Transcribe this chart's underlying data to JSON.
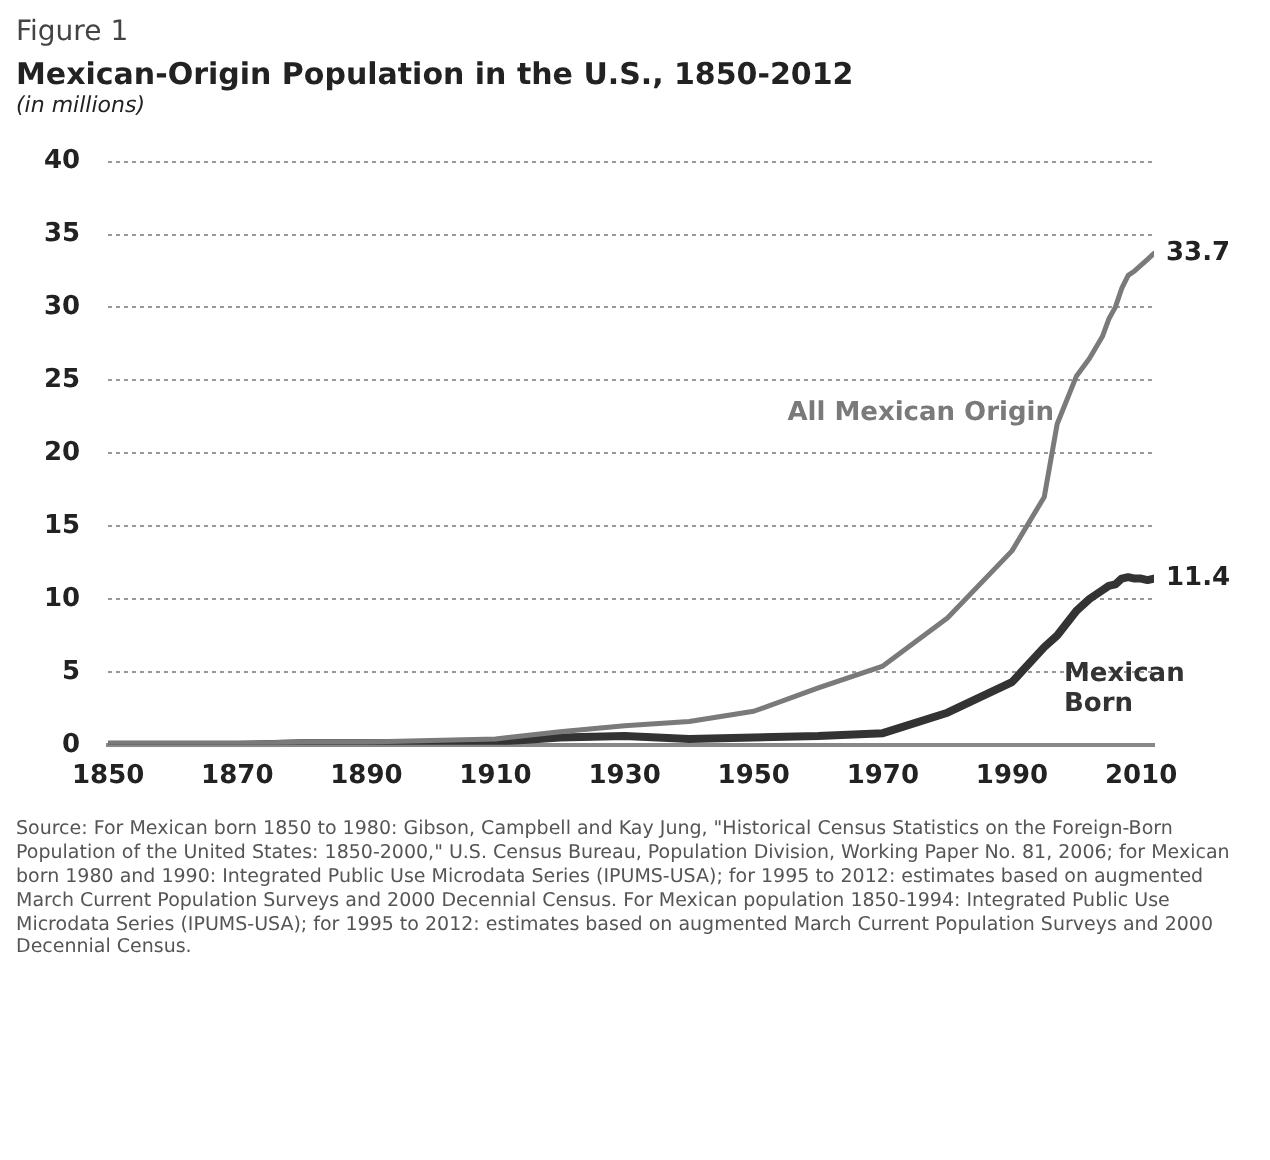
{
  "chart_data": {
    "type": "line",
    "title": "Mexican-Origin Population in the U.S., 1850-2012",
    "subtitle": "(in millions)",
    "annotations": [
      "Figure 1",
      "Source: For Mexican born 1850 to 1980: Gibson, Campbell and Kay Jung, \"Historical Census Statistics on the Foreign-Born Population of the United States: 1850-2000,\" U.S. Census Bureau, Population Division, Working Paper No. 81, 2006; for Mexican born 1980 and 1990: Integrated Public Use Microdata Series (IPUMS-USA); for 1995 to 2012: estimates based on augmented March Current Population Surveys and 2000 Decennial Census. For Mexican population 1850-1994: Integrated Public Use Microdata Series (IPUMS-USA); for 1995 to 2012: estimates based on augmented March Current Population Surveys and 2000 Decennial Census."
    ],
    "x": [
      1850,
      1860,
      1870,
      1880,
      1890,
      1900,
      1910,
      1920,
      1930,
      1940,
      1950,
      1960,
      1970,
      1980,
      1990,
      1995,
      1997,
      2000,
      2002,
      2004,
      2005,
      2006,
      2007,
      2008,
      2009,
      2010,
      2011,
      2012
    ],
    "series": [
      {
        "name": "All Mexican Origin",
        "color": "#7a7a7a",
        "values": [
          0.1,
          0.1,
          0.1,
          0.2,
          0.2,
          0.3,
          0.4,
          0.9,
          1.3,
          1.6,
          2.3,
          3.9,
          5.4,
          8.7,
          13.3,
          17.0,
          22.0,
          25.3,
          26.5,
          28.0,
          29.2,
          30.0,
          31.3,
          32.2,
          32.5,
          32.9,
          33.3,
          33.7
        ],
        "value_labels": [
          null,
          null,
          null,
          null,
          null,
          null,
          null,
          null,
          null,
          null,
          null,
          null,
          null,
          null,
          null,
          null,
          null,
          null,
          null,
          null,
          null,
          null,
          null,
          null,
          null,
          null,
          null,
          "33.7"
        ]
      },
      {
        "name": "Mexican Born",
        "color": "#333333",
        "values": [
          0,
          0,
          0,
          0.1,
          0.1,
          0.1,
          0.2,
          0.5,
          0.6,
          0.4,
          0.5,
          0.6,
          0.8,
          2.2,
          4.3,
          6.7,
          7.5,
          9.2,
          10.0,
          10.6,
          10.9,
          11.0,
          11.4,
          11.5,
          11.4,
          11.4,
          11.3,
          11.4
        ],
        "value_labels": [
          null,
          null,
          null,
          null,
          null,
          null,
          null,
          null,
          null,
          null,
          null,
          null,
          null,
          null,
          null,
          null,
          null,
          null,
          null,
          null,
          null,
          null,
          null,
          null,
          null,
          null,
          null,
          "11.4"
        ]
      }
    ],
    "xlim": [
      1850,
      2012
    ],
    "xticks": [
      1850,
      1870,
      1890,
      1910,
      1930,
      1950,
      1970,
      1990,
      2010
    ],
    "ylim": [
      0,
      40
    ],
    "yticks": [
      0,
      5,
      10,
      15,
      20,
      25,
      30,
      35,
      40
    ],
    "grid": "y",
    "legend": false,
    "marker": "none",
    "line_style": "solid"
  }
}
